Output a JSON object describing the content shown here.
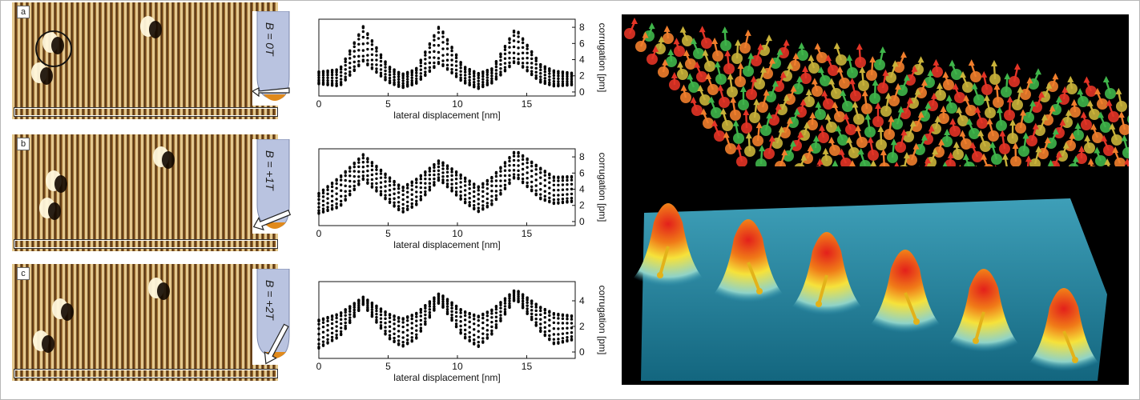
{
  "panels": [
    {
      "letter": "a",
      "field_label": "B = 0T"
    },
    {
      "letter": "b",
      "field_label": "B = +1T"
    },
    {
      "letter": "c",
      "field_label": "B = +2T"
    }
  ],
  "chart_data": [
    {
      "type": "scatter",
      "xlabel": "lateral displacement [nm]",
      "ylabel": "corrugation [pm]",
      "xlim": [
        0,
        18.5
      ],
      "ylim": [
        -0.5,
        9
      ],
      "xticks": [
        0,
        5,
        10,
        15
      ],
      "yticks": [
        0,
        2,
        4,
        6,
        8
      ],
      "envelope_peaks_x": [
        3.2,
        8.7,
        14.2
      ],
      "low": {
        "x": [
          0,
          1.5,
          3.2,
          5,
          6,
          7,
          8.7,
          10.4,
          11.5,
          12.5,
          14.2,
          16,
          17,
          18.5
        ],
        "y": [
          1,
          0.7,
          3.8,
          1.2,
          0.5,
          1,
          3.6,
          1.2,
          0.4,
          1.1,
          3.8,
          1.2,
          0.7,
          0.9
        ]
      },
      "high": {
        "x": [
          0,
          1.5,
          3.2,
          5,
          6,
          7,
          8.7,
          10.4,
          11.5,
          12.5,
          14.2,
          16,
          17,
          18.5
        ],
        "y": [
          2.5,
          2.8,
          8.1,
          3.2,
          2.2,
          2.8,
          8.2,
          3.2,
          2.3,
          2.9,
          7.9,
          3.4,
          2.6,
          2.3
        ]
      },
      "grid": false
    },
    {
      "type": "scatter",
      "xlabel": "lateral displacement [nm]",
      "ylabel": "corrugation [pm]",
      "xlim": [
        0,
        18.5
      ],
      "ylim": [
        -0.5,
        9
      ],
      "xticks": [
        0,
        5,
        10,
        15
      ],
      "yticks": [
        0,
        2,
        4,
        6,
        8
      ],
      "envelope_peaks_x": [
        3.2,
        8.7,
        14.2
      ],
      "low": {
        "x": [
          0,
          1.5,
          3.2,
          5,
          6,
          7,
          8.7,
          10.4,
          11.5,
          12.5,
          14.2,
          16,
          17,
          18.5
        ],
        "y": [
          1,
          1.8,
          5.2,
          2.5,
          1.1,
          2,
          5.2,
          2.5,
          1.2,
          2.1,
          5.6,
          2.8,
          2.2,
          2.5
        ]
      },
      "high": {
        "x": [
          0,
          1.5,
          3.2,
          5,
          6,
          7,
          8.7,
          10.4,
          11.5,
          12.5,
          14.2,
          16,
          17,
          18.5
        ],
        "y": [
          3.5,
          5.5,
          8.3,
          5.6,
          4.2,
          5.2,
          7.6,
          5.6,
          4.3,
          5.5,
          8.8,
          6.6,
          5.5,
          5.6
        ]
      },
      "grid": false
    },
    {
      "type": "scatter",
      "xlabel": "lateral displacement [nm]",
      "ylabel": "corrugation [pm]",
      "xlim": [
        0,
        18.5
      ],
      "ylim": [
        -0.5,
        5.5
      ],
      "xticks": [
        0,
        5,
        10,
        15
      ],
      "yticks": [
        0,
        2,
        4
      ],
      "envelope_peaks_x": [
        3.2,
        8.7,
        14.2
      ],
      "low": {
        "x": [
          0,
          1.5,
          3.2,
          5,
          6,
          7,
          8.7,
          10.4,
          11.5,
          12.5,
          14.2,
          16,
          17,
          18.5
        ],
        "y": [
          0.3,
          1.2,
          3.7,
          1.1,
          0.4,
          1,
          3.9,
          1.2,
          0.4,
          1.4,
          4.2,
          1.6,
          0.6,
          1
        ]
      },
      "high": {
        "x": [
          0,
          1.5,
          3.2,
          5,
          6,
          7,
          8.7,
          10.4,
          11.5,
          12.5,
          14.2,
          16,
          17,
          18.5
        ],
        "y": [
          2.5,
          3,
          4.3,
          3,
          2.6,
          3,
          4.6,
          3.2,
          2.8,
          3.3,
          4.9,
          3.5,
          3,
          2.8
        ]
      },
      "grid": false
    }
  ],
  "colors": {
    "stm_dark": "#3a1f0a",
    "stm_mid": "#9a6a2e",
    "stm_light": "#f1d9a0",
    "tip": "#b9c3e0",
    "tip_apex": "#e08a1c",
    "sky": "#000000",
    "surface": "#2a8fae"
  }
}
